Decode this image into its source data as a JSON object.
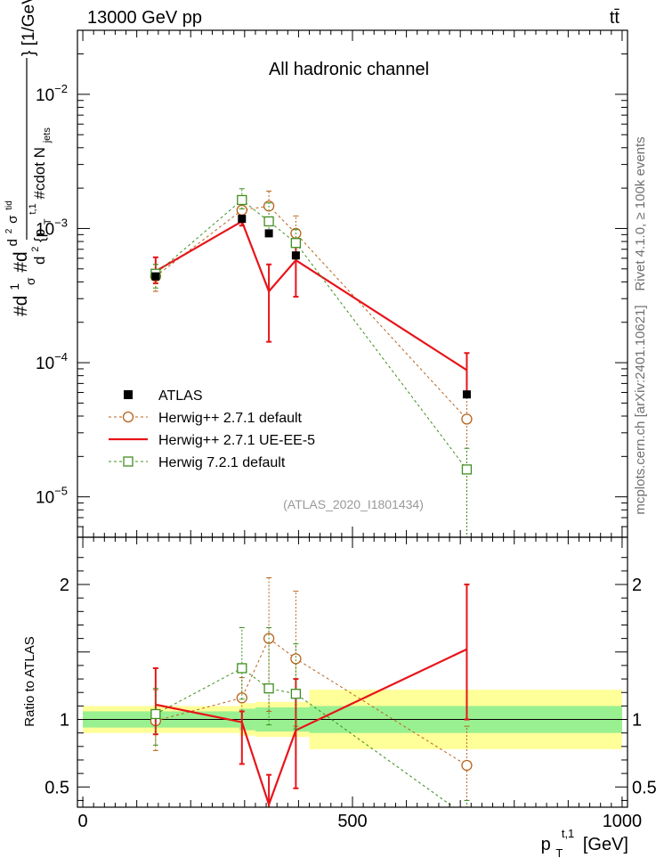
{
  "header": {
    "left": "13000 GeV pp",
    "right": "tt̄"
  },
  "side_text": {
    "rivet": "Rivet 4.1.0, ≥ 100k events",
    "mcplots": "mcplots.cern.ch [arXiv:2401.10621]"
  },
  "chart_data": {
    "type": "line",
    "title": "All hadronic channel",
    "analysis_label": "(ATLAS_2020_I1801434)",
    "xlabel": "p_T^{t,1} [GeV]",
    "xlabel_parts": {
      "main": "p",
      "sub": "T",
      "sup": "t,1",
      "unit": "[GeV]"
    },
    "ylabel": "#d{1}{#sigma}#d{d^{2}#sigma^{tid}}{d^{2}{p_{T}^{t,1} #cdot N_{jets}} [1/GeV]",
    "ylabel_parts": {
      "frac1_num": "#d",
      "frac1_one": "1",
      "frac1_sigma": "σ",
      "frac1_d": "#d",
      "frac2_num": "d",
      "frac2_sup": "2",
      "frac2_sigma": "σ",
      "frac2_sup2": "tid",
      "den_d": "d",
      "den_sup": "2",
      "den_p": "{p",
      "den_sub": "T",
      "den_sup2": "t,1",
      "den_rest": "#cdot N",
      "den_jets": "jets",
      "unit": "} [1/GeV]"
    },
    "xlim": [
      -10,
      1010
    ],
    "ylim": [
      5e-06,
      0.03
    ],
    "yscale": "log",
    "x_ticks": [
      {
        "value": 0,
        "label": "0"
      },
      {
        "value": 500,
        "label": "500"
      },
      {
        "value": 1000,
        "label": "1000"
      }
    ],
    "y_ticks": [
      {
        "value": 1e-05,
        "base": "10",
        "exp": "−5"
      },
      {
        "value": 0.0001,
        "base": "10",
        "exp": "−4"
      },
      {
        "value": 0.001,
        "base": "10",
        "exp": "−3"
      },
      {
        "value": 0.01,
        "base": "10",
        "exp": "−2"
      }
    ],
    "legend_position": "bottom-left",
    "series": [
      {
        "name": "ATLAS",
        "style": "data-marker",
        "color": "#000000",
        "x": [
          135,
          295,
          345,
          395,
          712
        ],
        "y": [
          0.00044,
          0.00118,
          0.00092,
          0.00063,
          5.8e-05
        ]
      },
      {
        "name": "Herwig++ 2.7.1 default",
        "style": "dashed-circle",
        "color": "#b8621b",
        "x": [
          135,
          295,
          345,
          395,
          712
        ],
        "y": [
          0.00044,
          0.00137,
          0.00147,
          0.00092,
          3.8e-05
        ],
        "yerr_lo": [
          0.00034,
          0.0012,
          0.00112,
          0.0006,
          0
        ],
        "yerr_hi": [
          0.00054,
          0.00155,
          0.0019,
          0.00124,
          5.5e-05
        ]
      },
      {
        "name": "Herwig++ 2.7.1 UE-EE-5",
        "style": "solid",
        "color": "#e8141a",
        "x": [
          135,
          295,
          345,
          395,
          712
        ],
        "y": [
          0.00048,
          0.00113,
          0.00034,
          0.00058,
          8.8e-05
        ],
        "yerr_lo": [
          0.00039,
          0.00105,
          0.000143,
          0.00031,
          5.8e-05
        ],
        "yerr_hi": [
          0.00061,
          0.00125,
          0.00054,
          0.00082,
          0.000118
        ]
      },
      {
        "name": "Herwig 7.2.1 default",
        "style": "dashed-square",
        "color": "#3f8f1f",
        "x": [
          135,
          295,
          345,
          395,
          712
        ],
        "y": [
          0.00046,
          0.00163,
          0.00113,
          0.00078,
          1.6e-05
        ],
        "yerr_lo": [
          0.00036,
          0.0014,
          0.00088,
          0.00059,
          0
        ],
        "yerr_hi": [
          0.00054,
          0.00198,
          0.00155,
          0.00098,
          2.3e-05
        ]
      }
    ],
    "ratio_panel": {
      "ylabel": "Ratio to ATLAS",
      "ylim": [
        0.35,
        2.35
      ],
      "y_ticks": [
        {
          "value": 0.5,
          "label": "0.5"
        },
        {
          "value": 1,
          "label": "1"
        },
        {
          "value": 2,
          "label": "2"
        }
      ],
      "bands": [
        {
          "x0": 0,
          "x1": 290,
          "inner": [
            0.94,
            1.06
          ],
          "outer": [
            0.9,
            1.1
          ]
        },
        {
          "x0": 290,
          "x1": 320,
          "inner": [
            0.92,
            1.08
          ],
          "outer": [
            0.88,
            1.12
          ]
        },
        {
          "x0": 320,
          "x1": 420,
          "inner": [
            0.91,
            1.09
          ],
          "outer": [
            0.87,
            1.13
          ]
        },
        {
          "x0": 420,
          "x1": 1000,
          "inner": [
            0.9,
            1.1
          ],
          "outer": [
            0.78,
            1.22
          ]
        }
      ],
      "series": [
        {
          "name": "Herwig++ 2.7.1 default",
          "x": [
            135,
            295,
            345,
            395,
            712
          ],
          "y": [
            0.99,
            1.16,
            1.6,
            1.45,
            0.66
          ],
          "yerr_lo": [
            0.77,
            0.67,
            1.06,
            0.95,
            0.0
          ],
          "yerr_hi": [
            1.22,
            1.31,
            2.05,
            1.95,
            0.95
          ]
        },
        {
          "name": "Herwig++ 2.7.1 UE-EE-5",
          "x": [
            135,
            295,
            345,
            395,
            712
          ],
          "y": [
            1.11,
            0.98,
            0.37,
            0.92,
            1.52
          ],
          "yerr_lo": [
            0.89,
            0.67,
            0.15,
            0.49,
            1.0
          ],
          "yerr_hi": [
            1.38,
            1.06,
            0.59,
            1.3,
            2.0
          ]
        },
        {
          "name": "Herwig 7.2.1 default",
          "x": [
            135,
            295,
            345,
            395,
            712
          ],
          "y": [
            1.04,
            1.38,
            1.23,
            1.19,
            0.28
          ],
          "yerr_lo": [
            0.81,
            1.15,
            0.96,
            0.93,
            0.0
          ],
          "yerr_hi": [
            1.23,
            1.68,
            1.68,
            1.56,
            0.4
          ]
        }
      ]
    }
  },
  "colors": {
    "band_inner": "#99f090",
    "band_outer": "#ffff99"
  }
}
